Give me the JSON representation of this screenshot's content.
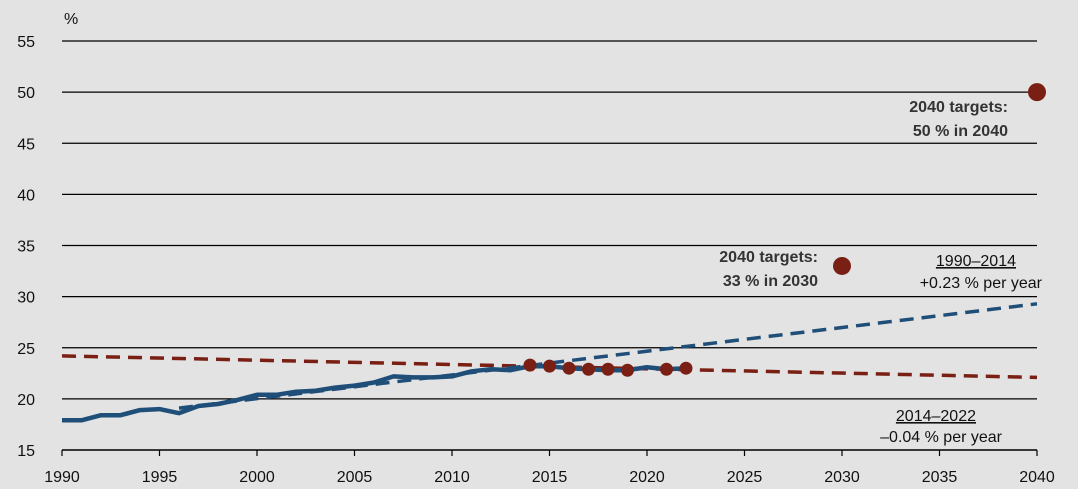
{
  "chart_data": {
    "type": "line",
    "ylabel": "%",
    "xlim": [
      1990,
      2040
    ],
    "ylim": [
      15,
      55
    ],
    "xticks": [
      1990,
      1995,
      2000,
      2005,
      2010,
      2015,
      2020,
      2025,
      2030,
      2035,
      2040
    ],
    "yticks": [
      15,
      20,
      25,
      30,
      35,
      40,
      45,
      50,
      55
    ],
    "grid": "horizontal",
    "colors": {
      "background": "#e3e3e3",
      "actual": "#1f4e79",
      "trend_1990_2014": "#1f4e79",
      "trend_2014_2022": "#7a1f14",
      "targets_points": "#7a1f14",
      "grid": "#000000"
    },
    "series": [
      {
        "style": "solid",
        "x": [
          1990,
          1991,
          1992,
          1993,
          1994,
          1995,
          1996,
          1997,
          1998,
          1999,
          2000,
          2001,
          2002,
          2003,
          2004,
          2005,
          2006,
          2007,
          2008,
          2009,
          2010,
          2011,
          2012,
          2013,
          2014,
          2015,
          2016,
          2017,
          2018,
          2019,
          2020,
          2021,
          2022
        ],
        "y": [
          17.9,
          17.9,
          18.4,
          18.4,
          18.9,
          19.0,
          18.6,
          19.3,
          19.5,
          19.9,
          20.4,
          20.4,
          20.7,
          20.8,
          21.1,
          21.3,
          21.6,
          22.2,
          22.1,
          22.1,
          22.2,
          22.7,
          22.9,
          22.8,
          23.2,
          23.2,
          23.0,
          22.9,
          22.8,
          22.8,
          23.1,
          22.9,
          23.0
        ]
      },
      {
        "name": "1990–2014",
        "style": "dashed",
        "x": [
          1996,
          2040
        ],
        "y": [
          19.1,
          29.3
        ]
      },
      {
        "name": "2014–2022",
        "style": "dashed",
        "x": [
          1990,
          2040
        ],
        "y": [
          24.2,
          22.1
        ]
      },
      {
        "style": "points",
        "x": [
          2014,
          2015,
          2016,
          2017,
          2018,
          2019,
          2021,
          2022
        ],
        "y": [
          23.3,
          23.2,
          23.0,
          22.9,
          22.9,
          22.8,
          22.9,
          23.0
        ]
      },
      {
        "style": "target-points",
        "x": [
          2030,
          2040
        ],
        "y": [
          33,
          50
        ]
      }
    ],
    "annotations": {
      "target_2040": [
        "2040 targets:",
        "50 % in 2040"
      ],
      "target_2030": [
        "2040 targets:",
        "33 % in 2030"
      ],
      "trend_1990_2014": [
        "1990–2014",
        "+0.23 % per year"
      ],
      "trend_2014_2022": [
        "2014–2022",
        "–0.04 % per year"
      ]
    }
  }
}
